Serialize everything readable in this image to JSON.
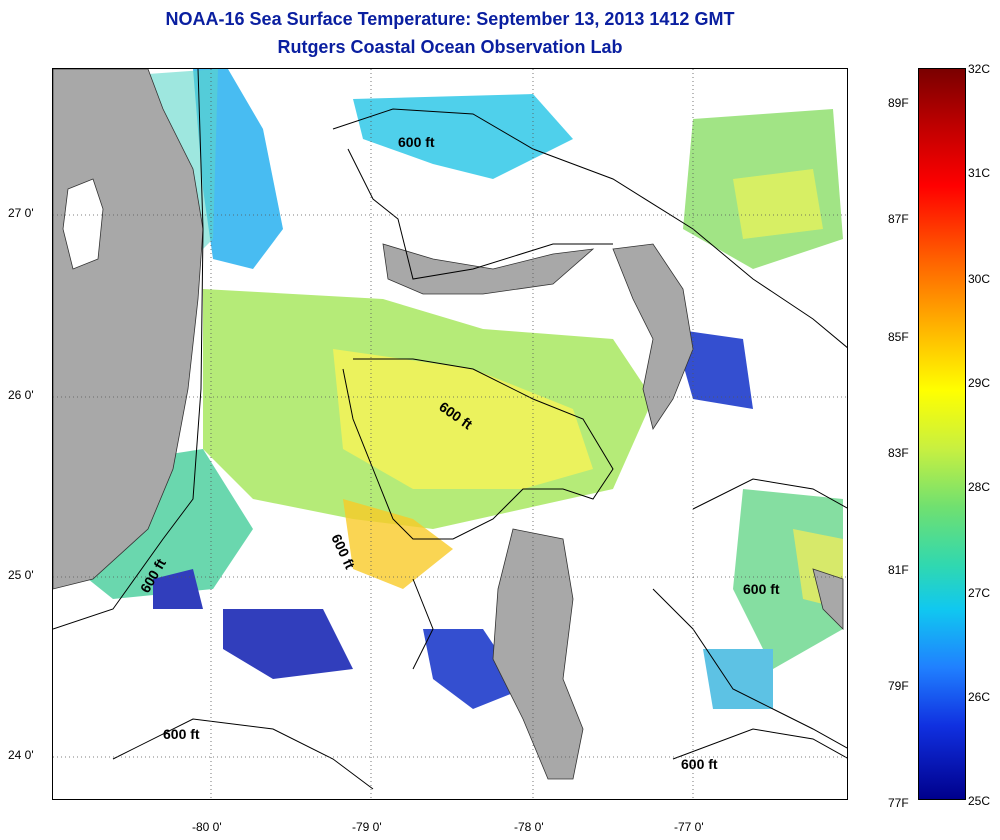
{
  "title": {
    "line1": "NOAA-16 Sea Surface Temperature:  September 13, 2013 1412 GMT",
    "line2": "Rutgers Coastal Ocean Observation Lab"
  },
  "map": {
    "lat_labels": [
      "27 0'",
      "26 0'",
      "25 0'",
      "24 0'"
    ],
    "lon_labels": [
      "-80 0'",
      "-79 0'",
      "-78 0'",
      "-77 0'"
    ],
    "contour_label": "600 ft",
    "colors": {
      "land": "#a8a8a8",
      "cloud_gap": "#ffffff",
      "contour": "#000000"
    }
  },
  "colorbar": {
    "celsius": [
      "32C",
      "31C",
      "30C",
      "29C",
      "28C",
      "27C",
      "26C",
      "25C"
    ],
    "fahrenheit": [
      "89F",
      "87F",
      "85F",
      "83F",
      "81F",
      "79F",
      "77F"
    ],
    "colors": [
      "#7a0000",
      "#ff0000",
      "#ffb000",
      "#ffff00",
      "#70e070",
      "#10c8f0",
      "#2080ff",
      "#00008c"
    ]
  }
}
